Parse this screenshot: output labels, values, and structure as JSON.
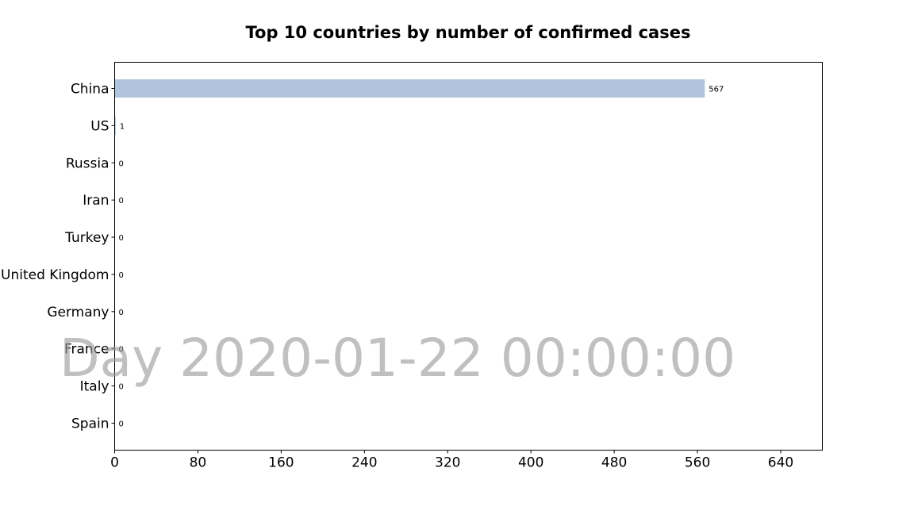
{
  "chart_data": {
    "type": "bar",
    "orientation": "horizontal",
    "title": "Top 10 countries by number of confirmed cases",
    "xlabel": "",
    "ylabel": "",
    "categories": [
      "China",
      "US",
      "Russia",
      "Iran",
      "Turkey",
      "United Kingdom",
      "Germany",
      "France",
      "Italy",
      "Spain"
    ],
    "values": [
      567,
      1,
      0,
      0,
      0,
      0,
      0,
      0,
      0,
      0
    ],
    "xlim": [
      0,
      680
    ],
    "xticks": [
      0,
      80,
      160,
      240,
      320,
      400,
      480,
      560,
      640
    ],
    "grid": false,
    "bar_color": "#b0c4de",
    "annotation": "Day 2020-01-22 00:00:00",
    "annotation_color": "#999999"
  }
}
